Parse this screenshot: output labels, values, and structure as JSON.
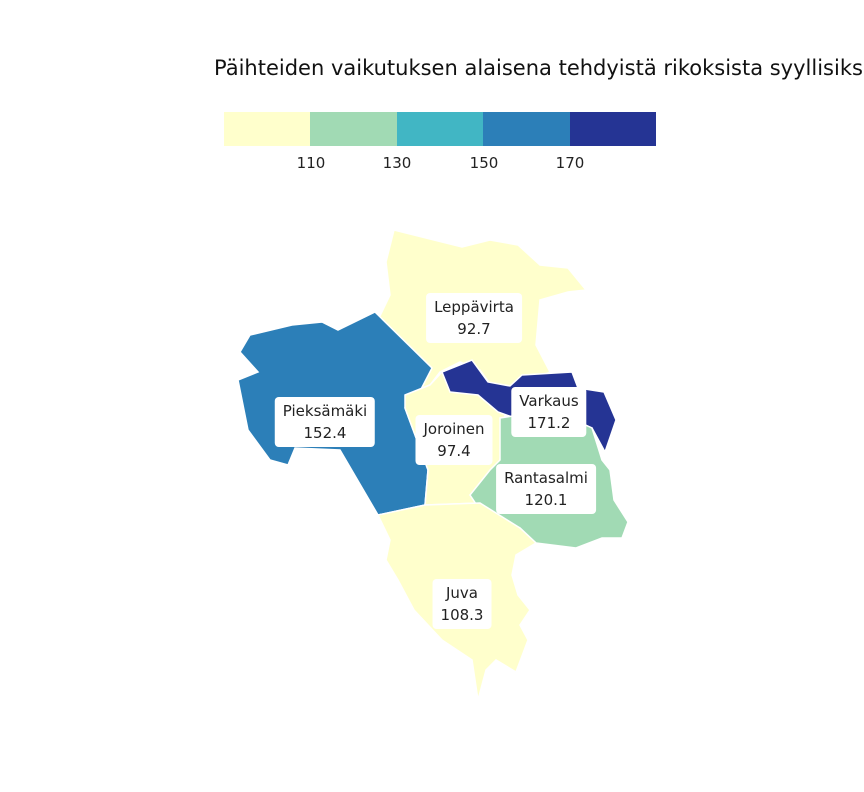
{
  "title": "Päihteiden vaikutuksen alaisena tehdyistä rikoksista syyllisiksi",
  "legend": {
    "colors": [
      "#ffffcc",
      "#a1dab4",
      "#41b6c4",
      "#2c7fb8",
      "#253494"
    ],
    "ticks": [
      "110",
      "130",
      "150",
      "170"
    ]
  },
  "chart_data": {
    "type": "choropleth",
    "title": "Päihteiden vaikutuksen alaisena tehdyistä rikoksista syyllisiksi",
    "breaks": [
      110,
      130,
      150,
      170
    ],
    "regions": [
      {
        "name": "Leppävirta",
        "value": "92.7"
      },
      {
        "name": "Pieksämäki",
        "value": "152.4"
      },
      {
        "name": "Joroinen",
        "value": "97.4"
      },
      {
        "name": "Varkaus",
        "value": "171.2"
      },
      {
        "name": "Rantasalmi",
        "value": "120.1"
      },
      {
        "name": "Juva",
        "value": "108.3"
      }
    ]
  }
}
